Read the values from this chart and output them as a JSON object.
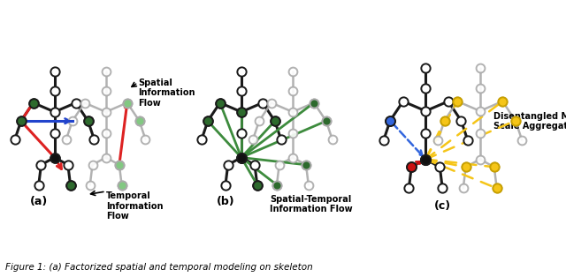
{
  "bg_color": "#ffffff",
  "dark_edge": "#1a1a1a",
  "gray_edge": "#aaaaaa",
  "gray_node_fill": "#dddddd",
  "gray_node_edge": "#aaaaaa",
  "white_node": "#ffffff",
  "black_node": "#111111",
  "dark_green": "#2d6a2d",
  "mid_green": "#3d8b3d",
  "light_green": "#82c882",
  "red_color": "#dd2222",
  "blue_color": "#2244cc",
  "yellow_color": "#f5c518",
  "red_c_color": "#cc1111",
  "blue_c_color": "#3366dd",
  "label_a": "(a)",
  "label_b": "(b)",
  "label_c": "(c)",
  "text_spatial": "Spatial\nInformation\nFlow",
  "text_temporal": "Temporal\nInformation\nFlow",
  "text_spatiotemp": "Spatial-Temporal\nInformation Flow",
  "text_disentangled": "Disentangled Multi-\nScale Aggregation",
  "figure_caption": "Figure 1: (a) Factorized spatial and temporal modeling on skeleton"
}
